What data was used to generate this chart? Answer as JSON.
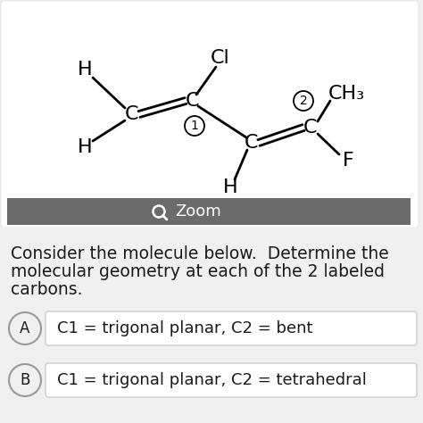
{
  "bg_color": "#f0f0f0",
  "molecule_bg": "#ffffff",
  "zoom_bar_color": "#6b6b6b",
  "zoom_bar_text": "Zoom",
  "question_text1": "Consider the molecule below.  Determine the",
  "question_text2": "molecular geometry at each of the 2 labeled",
  "question_text3": "carbons.",
  "option_A_text": "C1 = trigonal planar, C2 = bent",
  "option_B_text": "C1 = trigonal planar, C2 = tetrahedral",
  "text_color": "#1a1a1a",
  "option_circle_edge": "#999999",
  "option_box_edge": "#cccccc",
  "font_size_molecule": 16,
  "font_size_question": 13.5,
  "font_size_option": 13
}
